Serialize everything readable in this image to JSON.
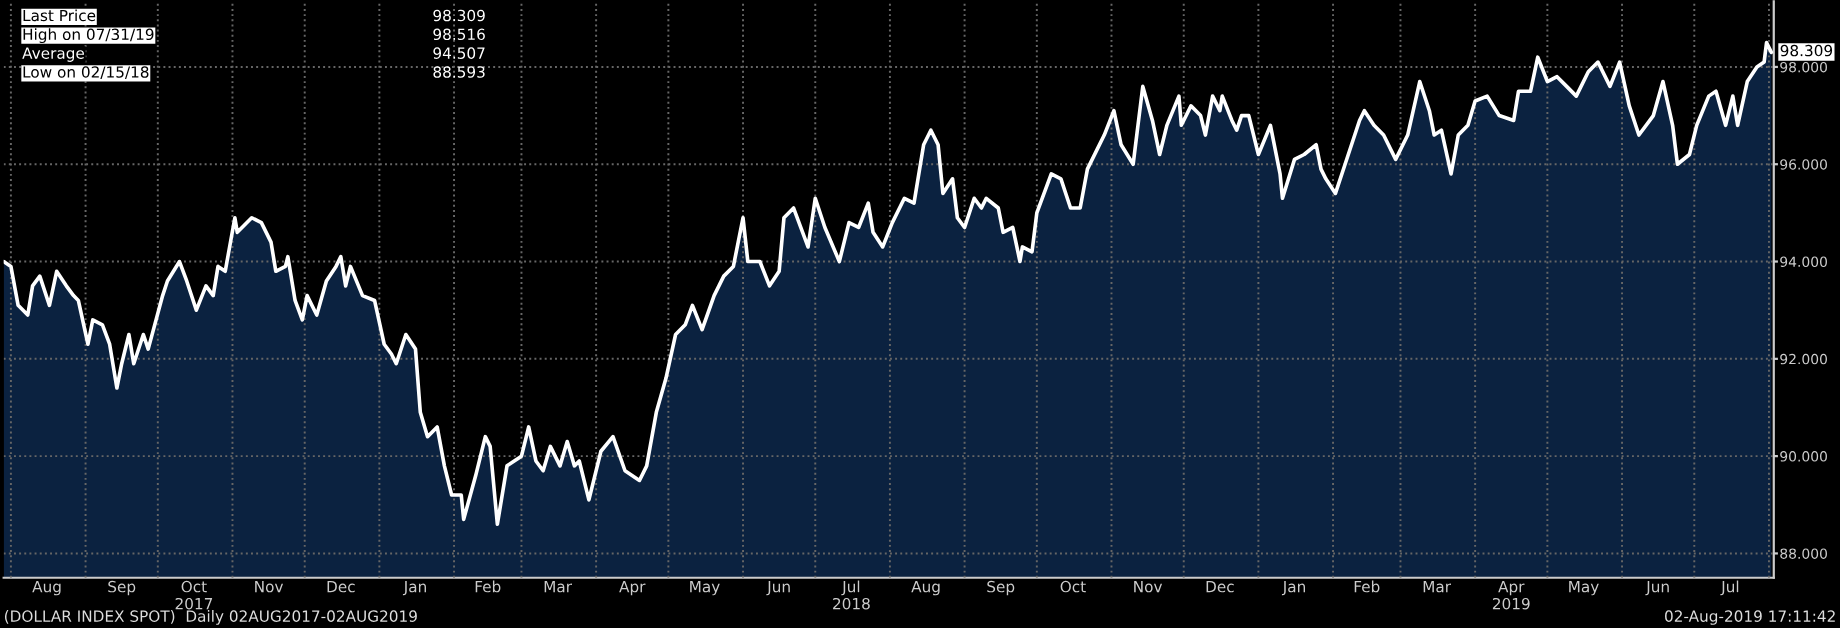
{
  "chart_data": {
    "type": "area",
    "x": [
      "2017-07-29",
      "2017-08-01",
      "2017-08-04",
      "2017-08-08",
      "2017-08-10",
      "2017-08-13",
      "2017-08-17",
      "2017-08-20",
      "2017-08-24",
      "2017-08-27",
      "2017-08-29",
      "2017-09-02",
      "2017-09-04",
      "2017-09-08",
      "2017-09-11",
      "2017-09-14",
      "2017-09-16",
      "2017-09-19",
      "2017-09-21",
      "2017-09-25",
      "2017-09-27",
      "2017-10-03",
      "2017-10-05",
      "2017-10-10",
      "2017-10-13",
      "2017-10-17",
      "2017-10-21",
      "2017-10-24",
      "2017-10-26",
      "2017-10-29",
      "2017-11-02",
      "2017-11-03",
      "2017-11-09",
      "2017-11-13",
      "2017-11-17",
      "2017-11-19",
      "2017-11-23",
      "2017-11-24",
      "2017-11-27",
      "2017-11-30",
      "2017-12-02",
      "2017-12-06",
      "2017-12-10",
      "2017-12-14",
      "2017-12-16",
      "2017-12-18",
      "2017-12-20",
      "2017-12-25",
      "2017-12-30",
      "2018-01-03",
      "2018-01-06",
      "2018-01-08",
      "2018-01-12",
      "2018-01-16",
      "2018-01-18",
      "2018-01-21",
      "2018-01-25",
      "2018-01-28",
      "2018-01-31",
      "2018-02-04",
      "2018-02-05",
      "2018-02-10",
      "2018-02-14",
      "2018-02-16",
      "2018-02-19",
      "2018-02-23",
      "2018-02-26",
      "2018-03-01",
      "2018-03-04",
      "2018-03-07",
      "2018-03-10",
      "2018-03-13",
      "2018-03-17",
      "2018-03-20",
      "2018-03-23",
      "2018-03-25",
      "2018-03-29",
      "2018-04-03",
      "2018-04-08",
      "2018-04-13",
      "2018-04-19",
      "2018-04-22",
      "2018-04-26",
      "2018-04-30",
      "2018-05-04",
      "2018-05-08",
      "2018-05-11",
      "2018-05-15",
      "2018-05-20",
      "2018-05-24",
      "2018-05-28",
      "2018-05-30",
      "2018-06-01",
      "2018-06-03",
      "2018-06-08",
      "2018-06-12",
      "2018-06-16",
      "2018-06-18",
      "2018-06-22",
      "2018-06-28",
      "2018-07-01",
      "2018-07-05",
      "2018-07-11",
      "2018-07-15",
      "2018-07-19",
      "2018-07-23",
      "2018-07-25",
      "2018-07-29",
      "2018-08-02",
      "2018-08-07",
      "2018-08-11",
      "2018-08-15",
      "2018-08-18",
      "2018-08-21",
      "2018-08-23",
      "2018-08-27",
      "2018-08-29",
      "2018-09-01",
      "2018-09-05",
      "2018-09-08",
      "2018-09-10",
      "2018-09-15",
      "2018-09-17",
      "2018-09-21",
      "2018-09-24",
      "2018-09-25",
      "2018-09-29",
      "2018-10-01",
      "2018-10-07",
      "2018-10-11",
      "2018-10-15",
      "2018-10-19",
      "2018-10-22",
      "2018-10-26",
      "2018-10-29",
      "2018-11-02",
      "2018-11-05",
      "2018-11-10",
      "2018-11-14",
      "2018-11-18",
      "2018-11-21",
      "2018-11-24",
      "2018-11-29",
      "2018-11-30",
      "2018-12-04",
      "2018-12-08",
      "2018-12-10",
      "2018-12-13",
      "2018-12-16",
      "2018-12-17",
      "2018-12-21",
      "2018-12-23",
      "2018-12-25",
      "2018-12-28",
      "2019-01-01",
      "2019-01-06",
      "2019-01-10",
      "2019-01-11",
      "2019-01-16",
      "2019-01-20",
      "2019-01-25",
      "2019-01-27",
      "2019-01-29",
      "2019-02-02",
      "2019-02-06",
      "2019-02-12",
      "2019-02-14",
      "2019-02-18",
      "2019-02-22",
      "2019-02-27",
      "2019-03-04",
      "2019-03-09",
      "2019-03-13",
      "2019-03-15",
      "2019-03-18",
      "2019-03-22",
      "2019-03-25",
      "2019-03-29",
      "2019-04-01",
      "2019-04-06",
      "2019-04-11",
      "2019-04-17",
      "2019-04-19",
      "2019-04-24",
      "2019-04-27",
      "2019-05-01",
      "2019-05-05",
      "2019-05-09",
      "2019-05-13",
      "2019-05-18",
      "2019-05-22",
      "2019-05-27",
      "2019-05-31",
      "2019-06-04",
      "2019-06-08",
      "2019-06-14",
      "2019-06-18",
      "2019-06-22",
      "2019-06-24",
      "2019-06-29",
      "2019-07-02",
      "2019-07-07",
      "2019-07-10",
      "2019-07-14",
      "2019-07-17",
      "2019-07-19",
      "2019-07-23",
      "2019-07-27",
      "2019-07-30",
      "2019-07-31",
      "2019-08-02"
    ],
    "series": [
      {
        "color": "#ffffff",
        "values": [
          94.0,
          93.9,
          93.1,
          92.9,
          93.5,
          93.7,
          93.1,
          93.8,
          93.5,
          93.3,
          93.2,
          92.3,
          92.8,
          92.7,
          92.3,
          91.4,
          91.9,
          92.5,
          91.9,
          92.5,
          92.2,
          93.3,
          93.6,
          94.0,
          93.6,
          93.0,
          93.5,
          93.3,
          93.9,
          93.8,
          94.9,
          94.6,
          94.9,
          94.8,
          94.4,
          93.8,
          93.9,
          94.1,
          93.2,
          92.8,
          93.3,
          92.9,
          93.6,
          93.9,
          94.1,
          93.5,
          93.9,
          93.3,
          93.2,
          92.3,
          92.1,
          91.9,
          92.5,
          92.2,
          90.9,
          90.4,
          90.6,
          89.8,
          89.2,
          89.2,
          88.7,
          89.6,
          90.4,
          90.2,
          88.6,
          89.8,
          89.9,
          90.0,
          90.6,
          89.9,
          89.7,
          90.2,
          89.8,
          90.3,
          89.8,
          89.9,
          89.1,
          90.1,
          90.4,
          89.7,
          89.5,
          89.8,
          90.9,
          91.6,
          92.5,
          92.7,
          93.1,
          92.6,
          93.3,
          93.7,
          93.9,
          94.4,
          94.9,
          94.0,
          94.0,
          93.5,
          93.8,
          94.9,
          95.1,
          94.3,
          95.3,
          94.7,
          94.0,
          94.8,
          94.7,
          95.2,
          94.6,
          94.3,
          94.8,
          95.3,
          95.2,
          96.4,
          96.7,
          96.4,
          95.4,
          95.7,
          94.9,
          94.7,
          95.3,
          95.1,
          95.3,
          95.1,
          94.6,
          94.7,
          94.0,
          94.3,
          94.2,
          95.0,
          95.8,
          95.7,
          95.1,
          95.1,
          95.9,
          96.3,
          96.6,
          97.1,
          96.4,
          96.0,
          97.6,
          96.9,
          96.2,
          96.8,
          97.4,
          96.8,
          97.2,
          97.0,
          96.6,
          97.4,
          97.1,
          97.4,
          96.9,
          96.7,
          97.0,
          97.0,
          96.2,
          96.8,
          95.8,
          95.3,
          96.1,
          96.2,
          96.4,
          95.9,
          95.7,
          95.4,
          96.0,
          96.9,
          97.1,
          96.8,
          96.6,
          96.1,
          96.6,
          97.7,
          97.1,
          96.6,
          96.7,
          95.8,
          96.6,
          96.8,
          97.3,
          97.4,
          97.0,
          96.9,
          97.5,
          97.5,
          98.2,
          97.7,
          97.8,
          97.6,
          97.4,
          97.9,
          98.1,
          97.6,
          98.1,
          97.2,
          96.6,
          97.0,
          97.7,
          96.8,
          96.0,
          96.2,
          96.8,
          97.4,
          97.5,
          96.8,
          97.4,
          96.8,
          97.7,
          98.0,
          98.1,
          98.5,
          98.3
        ]
      }
    ],
    "xlim": [
      "2017-07-29",
      "2019-08-03"
    ],
    "xticks": [
      {
        "value": "2017-08-01",
        "label": null
      },
      {
        "value": "2017-08-16",
        "label": "Aug"
      },
      {
        "value": "2017-09-01",
        "label": null
      },
      {
        "value": "2017-09-16",
        "label": "Sep"
      },
      {
        "value": "2017-10-01",
        "label": null
      },
      {
        "value": "2017-10-16",
        "label": "Oct\n2017"
      },
      {
        "value": "2017-11-01",
        "label": null
      },
      {
        "value": "2017-11-16",
        "label": "Nov"
      },
      {
        "value": "2017-12-01",
        "label": null
      },
      {
        "value": "2017-12-16",
        "label": "Dec"
      },
      {
        "value": "2018-01-01",
        "label": null
      },
      {
        "value": "2018-01-16",
        "label": "Jan"
      },
      {
        "value": "2018-02-01",
        "label": null
      },
      {
        "value": "2018-02-15",
        "label": "Feb"
      },
      {
        "value": "2018-03-01",
        "label": null
      },
      {
        "value": "2018-03-16",
        "label": "Mar"
      },
      {
        "value": "2018-04-01",
        "label": null
      },
      {
        "value": "2018-04-16",
        "label": "Apr"
      },
      {
        "value": "2018-05-01",
        "label": null
      },
      {
        "value": "2018-05-16",
        "label": "May"
      },
      {
        "value": "2018-06-01",
        "label": null
      },
      {
        "value": "2018-06-16",
        "label": "Jun"
      },
      {
        "value": "2018-07-01",
        "label": null
      },
      {
        "value": "2018-07-16",
        "label": "Jul\n2018"
      },
      {
        "value": "2018-08-01",
        "label": null
      },
      {
        "value": "2018-08-16",
        "label": "Aug"
      },
      {
        "value": "2018-09-01",
        "label": null
      },
      {
        "value": "2018-09-16",
        "label": "Sep"
      },
      {
        "value": "2018-10-01",
        "label": null
      },
      {
        "value": "2018-10-16",
        "label": "Oct"
      },
      {
        "value": "2018-11-01",
        "label": null
      },
      {
        "value": "2018-11-16",
        "label": "Nov"
      },
      {
        "value": "2018-12-01",
        "label": null
      },
      {
        "value": "2018-12-16",
        "label": "Dec"
      },
      {
        "value": "2019-01-01",
        "label": null
      },
      {
        "value": "2019-01-16",
        "label": "Jan"
      },
      {
        "value": "2019-02-01",
        "label": null
      },
      {
        "value": "2019-02-15",
        "label": "Feb"
      },
      {
        "value": "2019-03-01",
        "label": null
      },
      {
        "value": "2019-03-16",
        "label": "Mar"
      },
      {
        "value": "2019-04-01",
        "label": null
      },
      {
        "value": "2019-04-16",
        "label": "Apr\n2019"
      },
      {
        "value": "2019-05-01",
        "label": null
      },
      {
        "value": "2019-05-16",
        "label": "May"
      },
      {
        "value": "2019-06-01",
        "label": null
      },
      {
        "value": "2019-06-16",
        "label": "Jun"
      },
      {
        "value": "2019-07-01",
        "label": null
      },
      {
        "value": "2019-07-16",
        "label": "Jul"
      },
      {
        "value": "2019-08-01",
        "label": null
      }
    ],
    "ylim": [
      87.5,
      99.35
    ],
    "yticks": [
      {
        "value": 88,
        "label": "88.000"
      },
      {
        "value": 90,
        "label": "90.000"
      },
      {
        "value": 92,
        "label": "92.000"
      },
      {
        "value": 94,
        "label": "94.000"
      },
      {
        "value": 96,
        "label": "96.000"
      },
      {
        "value": 98,
        "label": "98.000"
      }
    ],
    "grid": true,
    "annotations": [
      "Last Price",
      "98.309",
      "High on 07/31/19",
      "98.516",
      "Average",
      "94.507",
      "Low on 02/15/18",
      "88.593",
      {
        "text": "98.309",
        "x": "2019-08-02",
        "y": 98.309
      },
      "(DOLLAR INDEX SPOT)  Daily 02AUG2017-02AUG2019",
      "02-Aug-2019 17:11:42"
    ]
  }
}
